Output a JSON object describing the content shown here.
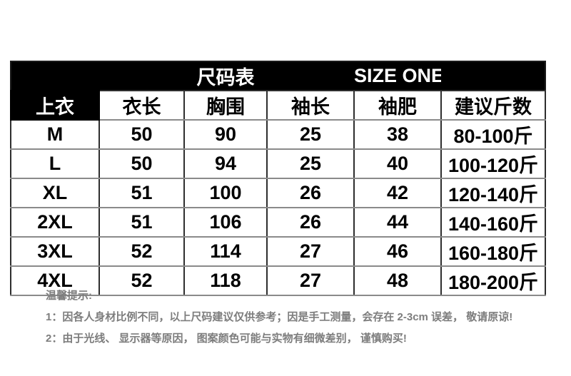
{
  "header": {
    "title_cn": "尺码表",
    "title_en": "SIZE ONE"
  },
  "size_table": {
    "corner_label": "上衣",
    "columns": [
      "衣长",
      "胸围",
      "袖长",
      "袖肥",
      "建议斤数"
    ],
    "rows": [
      {
        "size": "M",
        "values": [
          "50",
          "90",
          "25",
          "38",
          "80-100斤"
        ]
      },
      {
        "size": "L",
        "values": [
          "50",
          "94",
          "25",
          "40",
          "100-120斤"
        ]
      },
      {
        "size": "XL",
        "values": [
          "51",
          "100",
          "26",
          "42",
          "120-140斤"
        ]
      },
      {
        "size": "2XL",
        "values": [
          "51",
          "106",
          "26",
          "44",
          "140-160斤"
        ]
      },
      {
        "size": "3XL",
        "values": [
          "52",
          "114",
          "27",
          "46",
          "160-180斤"
        ]
      },
      {
        "size": "4XL",
        "values": [
          "52",
          "118",
          "27",
          "48",
          "180-200斤"
        ]
      }
    ]
  },
  "notes": {
    "heading": "温馨提示:",
    "lines": [
      "1：因各人身材比例不同，以上尺码建议仅供参考；因是手工测量，会存在 2-3cm 误差， 敬请原谅!",
      "2：由于光线、 显示器等原因， 图案颜色可能与实物有细微差别， 谨慎购买!"
    ]
  },
  "colors": {
    "header_bg": "#000000",
    "header_text": "#ffffff",
    "body_text": "#000000",
    "note_text": "#7d7d7d",
    "border_dark": "#2e2e2e",
    "border_light": "#8a8a8a"
  }
}
